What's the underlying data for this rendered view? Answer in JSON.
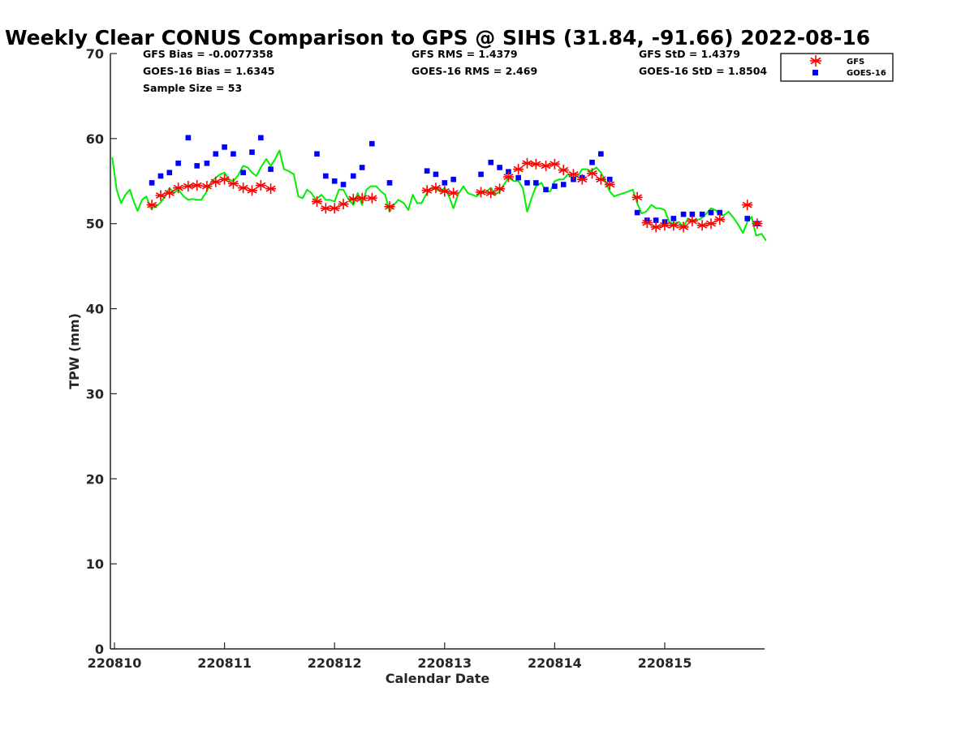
{
  "chart_data": {
    "type": "scatter",
    "title": "Weekly Clear CONUS Comparison to GPS @ SIHS (31.84, -91.66) 2022-08-16",
    "xlabel": "Calendar Date",
    "ylabel": "TPW (mm)",
    "xticks": [
      {
        "label": "220810",
        "day": 0
      },
      {
        "label": "220811",
        "day": 1
      },
      {
        "label": "220812",
        "day": 2
      },
      {
        "label": "220813",
        "day": 3
      },
      {
        "label": "220814",
        "day": 4
      },
      {
        "label": "220815",
        "day": 5
      }
    ],
    "xlim": [
      0,
      5.9
    ],
    "ylim": [
      0,
      70
    ],
    "yticks": [
      0,
      10,
      20,
      30,
      40,
      50,
      60,
      70
    ],
    "grid": false,
    "legend_position": "top-right, outside plot",
    "stats": {
      "gfs_bias": "GFS Bias = -0.0077358",
      "goes_bias": "GOES-16 Bias = 1.6345",
      "sample_size": "Sample Size = 53",
      "gfs_rms": "GFS RMS = 1.4379",
      "goes_rms": "GOES-16 RMS = 2.469",
      "gfs_std": "GFS StD = 1.4379",
      "goes_std": "GOES-16 StD = 1.8504"
    },
    "series": [
      {
        "name": "GFS",
        "marker": "asterisk",
        "color": "#ff0000",
        "points": [
          [
            0.34,
            52.2
          ],
          [
            0.42,
            53.3
          ],
          [
            0.5,
            53.6
          ],
          [
            0.58,
            54.2
          ],
          [
            0.67,
            54.4
          ],
          [
            0.75,
            54.5
          ],
          [
            0.84,
            54.4
          ],
          [
            0.92,
            54.9
          ],
          [
            1.0,
            55.2
          ],
          [
            1.08,
            54.7
          ],
          [
            1.17,
            54.2
          ],
          [
            1.25,
            53.9
          ],
          [
            1.33,
            54.5
          ],
          [
            1.42,
            54.1
          ],
          [
            1.84,
            52.6
          ],
          [
            1.92,
            51.8
          ],
          [
            2.0,
            51.8
          ],
          [
            2.08,
            52.3
          ],
          [
            2.17,
            52.9
          ],
          [
            2.25,
            53.0
          ],
          [
            2.34,
            53.0
          ],
          [
            2.5,
            52.0
          ],
          [
            2.84,
            53.9
          ],
          [
            2.92,
            54.2
          ],
          [
            3.0,
            53.8
          ],
          [
            3.08,
            53.6
          ],
          [
            3.33,
            53.7
          ],
          [
            3.42,
            53.6
          ],
          [
            3.5,
            54.1
          ],
          [
            3.58,
            55.5
          ],
          [
            3.67,
            56.4
          ],
          [
            3.75,
            57.1
          ],
          [
            3.83,
            57.0
          ],
          [
            3.92,
            56.8
          ],
          [
            4.0,
            57.0
          ],
          [
            4.08,
            56.3
          ],
          [
            4.17,
            55.8
          ],
          [
            4.25,
            55.2
          ],
          [
            4.34,
            55.9
          ],
          [
            4.42,
            55.2
          ],
          [
            4.5,
            54.6
          ],
          [
            4.75,
            53.1
          ],
          [
            4.84,
            50.1
          ],
          [
            4.92,
            49.6
          ],
          [
            5.0,
            49.8
          ],
          [
            5.08,
            49.8
          ],
          [
            5.17,
            49.6
          ],
          [
            5.25,
            50.3
          ],
          [
            5.34,
            49.8
          ],
          [
            5.42,
            50.0
          ],
          [
            5.5,
            50.5
          ],
          [
            5.75,
            52.2
          ],
          [
            5.84,
            50.0
          ]
        ]
      },
      {
        "name": "GOES-16",
        "marker": "square",
        "color": "#0000ff",
        "points": [
          [
            0.34,
            54.8
          ],
          [
            0.42,
            55.6
          ],
          [
            0.5,
            56.0
          ],
          [
            0.58,
            57.1
          ],
          [
            0.67,
            60.1
          ],
          [
            0.75,
            56.8
          ],
          [
            0.84,
            57.1
          ],
          [
            0.92,
            58.2
          ],
          [
            1.0,
            59.0
          ],
          [
            1.08,
            58.2
          ],
          [
            1.17,
            56.0
          ],
          [
            1.25,
            58.4
          ],
          [
            1.33,
            60.1
          ],
          [
            1.42,
            56.4
          ],
          [
            1.84,
            58.2
          ],
          [
            1.92,
            55.6
          ],
          [
            2.0,
            55.0
          ],
          [
            2.08,
            54.6
          ],
          [
            2.17,
            55.6
          ],
          [
            2.25,
            56.6
          ],
          [
            2.34,
            59.4
          ],
          [
            2.5,
            54.8
          ],
          [
            2.84,
            56.2
          ],
          [
            2.92,
            55.8
          ],
          [
            3.0,
            54.8
          ],
          [
            3.08,
            55.2
          ],
          [
            3.33,
            55.8
          ],
          [
            3.42,
            57.2
          ],
          [
            3.5,
            56.6
          ],
          [
            3.58,
            56.1
          ],
          [
            3.67,
            55.4
          ],
          [
            3.75,
            54.8
          ],
          [
            3.83,
            54.8
          ],
          [
            3.92,
            54.0
          ],
          [
            4.0,
            54.4
          ],
          [
            4.08,
            54.6
          ],
          [
            4.17,
            55.2
          ],
          [
            4.25,
            55.4
          ],
          [
            4.34,
            57.2
          ],
          [
            4.42,
            58.2
          ],
          [
            4.5,
            55.2
          ],
          [
            4.75,
            51.3
          ],
          [
            4.84,
            50.4
          ],
          [
            4.92,
            50.4
          ],
          [
            5.0,
            50.2
          ],
          [
            5.08,
            50.6
          ],
          [
            5.17,
            51.1
          ],
          [
            5.25,
            51.1
          ],
          [
            5.34,
            51.1
          ],
          [
            5.42,
            51.3
          ],
          [
            5.5,
            51.3
          ],
          [
            5.75,
            50.6
          ],
          [
            5.84,
            50.0
          ]
        ]
      },
      {
        "name": "GPS",
        "marker": "line",
        "color": "#00ee00",
        "points": [
          [
            -0.02,
            57.8
          ],
          [
            0.02,
            54.0
          ],
          [
            0.06,
            52.4
          ],
          [
            0.1,
            53.4
          ],
          [
            0.14,
            54.0
          ],
          [
            0.17,
            52.8
          ],
          [
            0.21,
            51.5
          ],
          [
            0.25,
            52.8
          ],
          [
            0.29,
            53.2
          ],
          [
            0.33,
            51.8
          ],
          [
            0.38,
            52.0
          ],
          [
            0.42,
            52.5
          ],
          [
            0.46,
            53.2
          ],
          [
            0.5,
            54.2
          ],
          [
            0.54,
            53.6
          ],
          [
            0.58,
            54.0
          ],
          [
            0.63,
            53.2
          ],
          [
            0.67,
            52.8
          ],
          [
            0.71,
            52.9
          ],
          [
            0.75,
            52.8
          ],
          [
            0.79,
            52.8
          ],
          [
            0.83,
            53.6
          ],
          [
            0.88,
            54.9
          ],
          [
            0.92,
            55.4
          ],
          [
            0.96,
            55.8
          ],
          [
            1.0,
            56.0
          ],
          [
            1.04,
            55.2
          ],
          [
            1.08,
            55.0
          ],
          [
            1.12,
            55.6
          ],
          [
            1.17,
            56.8
          ],
          [
            1.21,
            56.6
          ],
          [
            1.25,
            56.0
          ],
          [
            1.29,
            55.6
          ],
          [
            1.33,
            56.6
          ],
          [
            1.38,
            57.6
          ],
          [
            1.42,
            56.8
          ],
          [
            1.46,
            57.6
          ],
          [
            1.5,
            58.6
          ],
          [
            1.54,
            56.4
          ],
          [
            1.58,
            56.2
          ],
          [
            1.63,
            55.8
          ],
          [
            1.67,
            53.2
          ],
          [
            1.71,
            53.0
          ],
          [
            1.75,
            54.0
          ],
          [
            1.79,
            53.6
          ],
          [
            1.83,
            52.8
          ],
          [
            1.88,
            53.4
          ],
          [
            1.92,
            52.8
          ],
          [
            1.96,
            52.8
          ],
          [
            2.0,
            52.6
          ],
          [
            2.04,
            54.0
          ],
          [
            2.08,
            54.0
          ],
          [
            2.12,
            53.0
          ],
          [
            2.17,
            52.2
          ],
          [
            2.21,
            53.6
          ],
          [
            2.25,
            52.2
          ],
          [
            2.29,
            54.0
          ],
          [
            2.33,
            54.4
          ],
          [
            2.38,
            54.4
          ],
          [
            2.42,
            53.8
          ],
          [
            2.46,
            53.4
          ],
          [
            2.5,
            51.4
          ],
          [
            2.54,
            52.2
          ],
          [
            2.58,
            52.8
          ],
          [
            2.63,
            52.4
          ],
          [
            2.67,
            51.6
          ],
          [
            2.71,
            53.4
          ],
          [
            2.75,
            52.4
          ],
          [
            2.79,
            52.4
          ],
          [
            2.83,
            53.4
          ],
          [
            2.88,
            54.2
          ],
          [
            2.92,
            54.0
          ],
          [
            2.96,
            53.8
          ],
          [
            3.0,
            54.2
          ],
          [
            3.04,
            53.2
          ],
          [
            3.08,
            51.8
          ],
          [
            3.12,
            53.4
          ],
          [
            3.17,
            54.4
          ],
          [
            3.21,
            53.6
          ],
          [
            3.25,
            53.4
          ],
          [
            3.29,
            53.2
          ],
          [
            3.33,
            53.6
          ],
          [
            3.38,
            53.8
          ],
          [
            3.42,
            54.2
          ],
          [
            3.46,
            53.4
          ],
          [
            3.5,
            53.8
          ],
          [
            3.54,
            54.6
          ],
          [
            3.58,
            55.4
          ],
          [
            3.63,
            55.0
          ],
          [
            3.67,
            55.0
          ],
          [
            3.71,
            54.2
          ],
          [
            3.75,
            51.4
          ],
          [
            3.79,
            53.0
          ],
          [
            3.83,
            54.4
          ],
          [
            3.88,
            54.8
          ],
          [
            3.92,
            53.8
          ],
          [
            3.96,
            53.8
          ],
          [
            4.0,
            55.0
          ],
          [
            4.04,
            55.2
          ],
          [
            4.08,
            55.2
          ],
          [
            4.12,
            55.8
          ],
          [
            4.17,
            55.4
          ],
          [
            4.21,
            55.6
          ],
          [
            4.25,
            56.4
          ],
          [
            4.29,
            56.4
          ],
          [
            4.33,
            56.2
          ],
          [
            4.38,
            56.6
          ],
          [
            4.42,
            56.0
          ],
          [
            4.46,
            55.0
          ],
          [
            4.5,
            53.8
          ],
          [
            4.54,
            53.2
          ],
          [
            4.58,
            53.4
          ],
          [
            4.63,
            53.6
          ],
          [
            4.67,
            53.8
          ],
          [
            4.71,
            54.0
          ],
          [
            4.75,
            52.4
          ],
          [
            4.79,
            51.2
          ],
          [
            4.83,
            51.4
          ],
          [
            4.88,
            52.2
          ],
          [
            4.92,
            51.8
          ],
          [
            4.96,
            51.8
          ],
          [
            5.0,
            51.6
          ],
          [
            5.04,
            50.2
          ],
          [
            5.08,
            50.0
          ],
          [
            5.13,
            50.2
          ],
          [
            5.17,
            49.6
          ],
          [
            5.21,
            50.6
          ],
          [
            5.25,
            50.4
          ],
          [
            5.29,
            50.4
          ],
          [
            5.33,
            50.6
          ],
          [
            5.38,
            51.2
          ],
          [
            5.42,
            51.8
          ],
          [
            5.46,
            51.6
          ],
          [
            5.5,
            51.0
          ],
          [
            5.54,
            51.0
          ],
          [
            5.58,
            51.4
          ],
          [
            5.63,
            50.6
          ],
          [
            5.67,
            49.8
          ],
          [
            5.71,
            48.9
          ],
          [
            5.75,
            50.2
          ],
          [
            5.79,
            50.8
          ],
          [
            5.83,
            48.6
          ],
          [
            5.88,
            48.8
          ],
          [
            5.92,
            48.0
          ]
        ]
      }
    ]
  }
}
